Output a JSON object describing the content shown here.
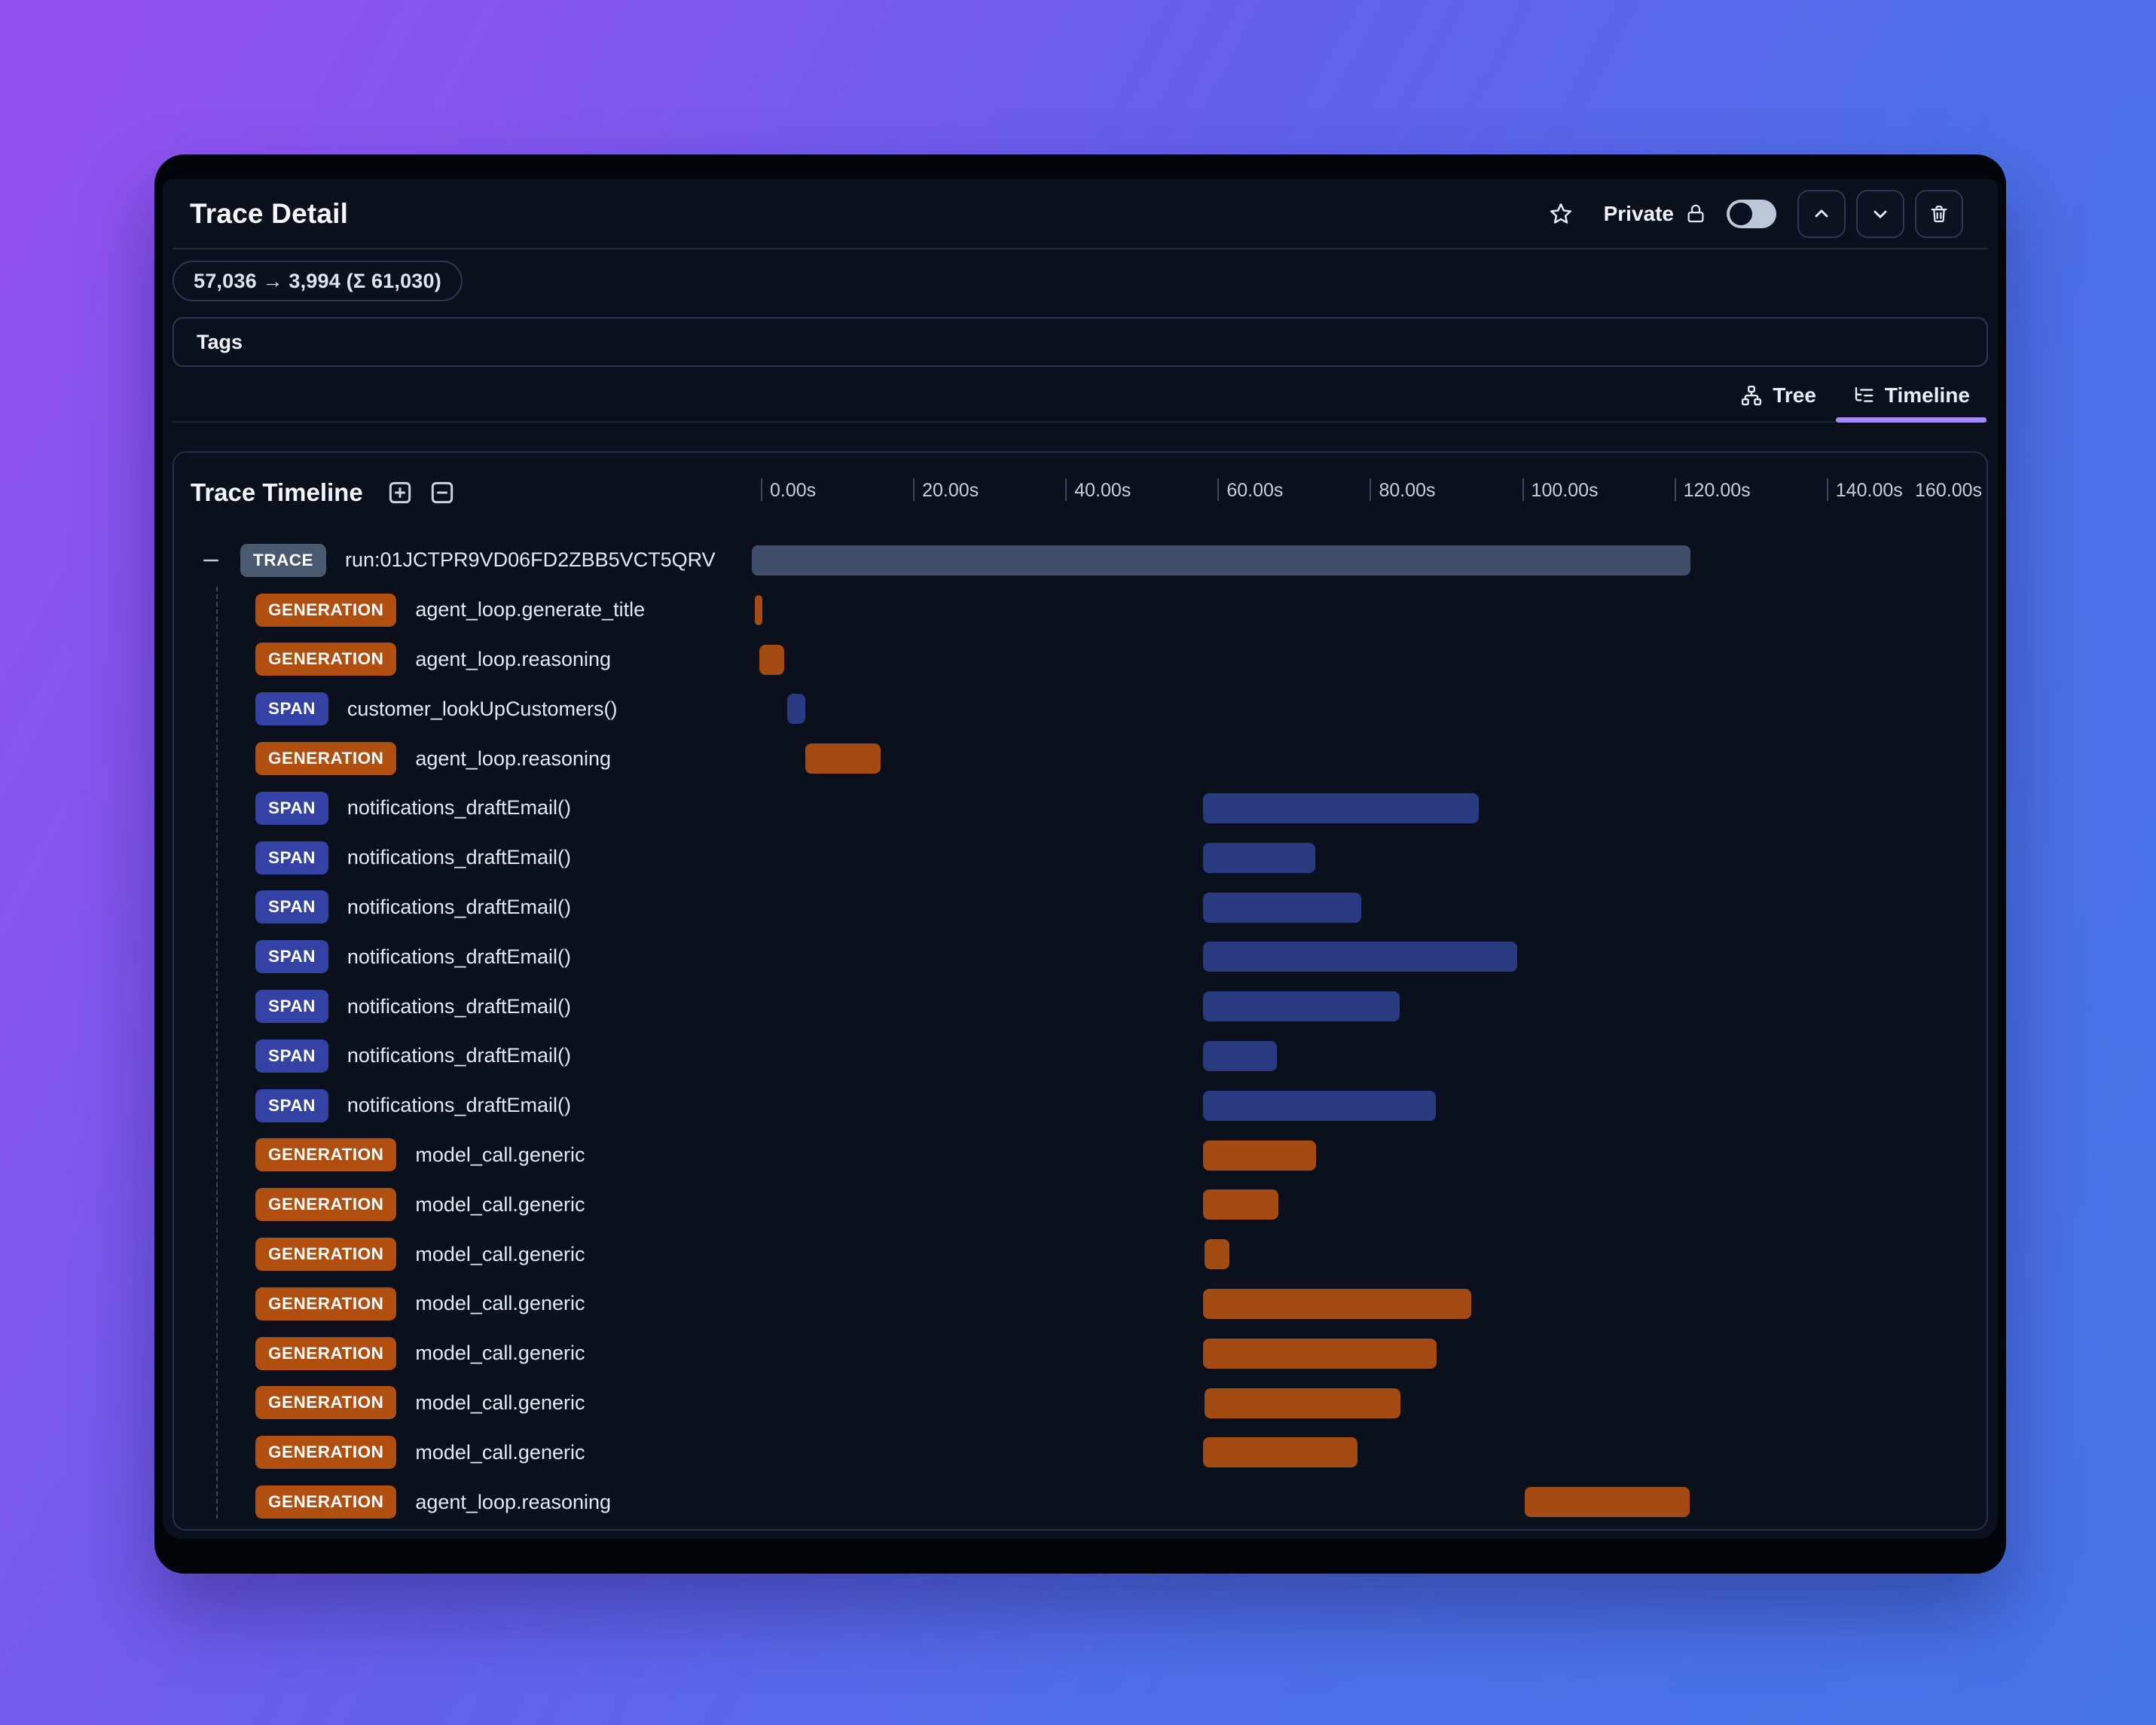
{
  "header": {
    "title": "Trace Detail",
    "privacy": {
      "label": "Private",
      "toggle_state": "off"
    }
  },
  "token_badge": {
    "text": "57,036 → 3,994 (Σ 61,030)"
  },
  "tags": {
    "label": "Tags"
  },
  "view_tabs": [
    {
      "label": "Tree",
      "active": false
    },
    {
      "label": "Timeline",
      "active": true
    }
  ],
  "timeline": {
    "title": "Trace Timeline",
    "axis": {
      "total_seconds": 161,
      "ticks": [
        {
          "t": 0,
          "label": "0.00s"
        },
        {
          "t": 20,
          "label": "20.00s"
        },
        {
          "t": 40,
          "label": "40.00s"
        },
        {
          "t": 60,
          "label": "60.00s"
        },
        {
          "t": 80,
          "label": "80.00s"
        },
        {
          "t": 100,
          "label": "100.00s"
        },
        {
          "t": 120,
          "label": "120.00s"
        },
        {
          "t": 140,
          "label": "140.00s"
        }
      ],
      "end_label": "160.00s"
    },
    "rows": [
      {
        "type": "trace",
        "type_label": "TRACE",
        "name": "run:01JCTPR9VD06FD2ZBB5VCT5QRV",
        "root": true,
        "start": 0,
        "end": 122.4
      },
      {
        "type": "generation",
        "type_label": "GENERATION",
        "name": "agent_loop.generate_title",
        "root": false,
        "start": 0.4,
        "end": 1.4
      },
      {
        "type": "generation",
        "type_label": "GENERATION",
        "name": "agent_loop.reasoning",
        "root": false,
        "start": 1.0,
        "end": 4.2
      },
      {
        "type": "span",
        "type_label": "SPAN",
        "name": "customer_lookUpCustomers()",
        "root": false,
        "start": 4.6,
        "end": 7.0
      },
      {
        "type": "generation",
        "type_label": "GENERATION",
        "name": "agent_loop.reasoning",
        "root": false,
        "start": 7.0,
        "end": 16.8
      },
      {
        "type": "span",
        "type_label": "SPAN",
        "name": "notifications_draftEmail()",
        "root": false,
        "start": 58.8,
        "end": 94.8
      },
      {
        "type": "span",
        "type_label": "SPAN",
        "name": "notifications_draftEmail()",
        "root": false,
        "start": 58.8,
        "end": 73.5
      },
      {
        "type": "span",
        "type_label": "SPAN",
        "name": "notifications_draftEmail()",
        "root": false,
        "start": 58.8,
        "end": 79.5
      },
      {
        "type": "span",
        "type_label": "SPAN",
        "name": "notifications_draftEmail()",
        "root": false,
        "start": 58.8,
        "end": 99.8
      },
      {
        "type": "span",
        "type_label": "SPAN",
        "name": "notifications_draftEmail()",
        "root": false,
        "start": 58.8,
        "end": 84.5
      },
      {
        "type": "span",
        "type_label": "SPAN",
        "name": "notifications_draftEmail()",
        "root": false,
        "start": 58.8,
        "end": 68.5
      },
      {
        "type": "span",
        "type_label": "SPAN",
        "name": "notifications_draftEmail()",
        "root": false,
        "start": 58.8,
        "end": 89.2
      },
      {
        "type": "generation",
        "type_label": "GENERATION",
        "name": "model_call.generic",
        "root": false,
        "start": 58.8,
        "end": 73.6
      },
      {
        "type": "generation",
        "type_label": "GENERATION",
        "name": "model_call.generic",
        "root": false,
        "start": 58.8,
        "end": 68.7
      },
      {
        "type": "generation",
        "type_label": "GENERATION",
        "name": "model_call.generic",
        "root": false,
        "start": 59.0,
        "end": 62.3
      },
      {
        "type": "generation",
        "type_label": "GENERATION",
        "name": "model_call.generic",
        "root": false,
        "start": 58.8,
        "end": 93.8
      },
      {
        "type": "generation",
        "type_label": "GENERATION",
        "name": "model_call.generic",
        "root": false,
        "start": 58.8,
        "end": 89.3
      },
      {
        "type": "generation",
        "type_label": "GENERATION",
        "name": "model_call.generic",
        "root": false,
        "start": 59.0,
        "end": 84.6
      },
      {
        "type": "generation",
        "type_label": "GENERATION",
        "name": "model_call.generic",
        "root": false,
        "start": 58.8,
        "end": 79.0
      },
      {
        "type": "generation",
        "type_label": "GENERATION",
        "name": "agent_loop.reasoning",
        "root": false,
        "start": 100.8,
        "end": 122.3
      }
    ]
  },
  "colors": {
    "badge": {
      "trace": "#49596f",
      "generation": "#b14f10",
      "span": "#3342a4"
    },
    "bar": {
      "trace": "#3e4e6b",
      "generation": "#a34b12",
      "span": "#293a80"
    },
    "accent_underline": "#a78bfa",
    "toggle_track": "#bcc8d8",
    "toggle_knob": "#0a1020"
  }
}
